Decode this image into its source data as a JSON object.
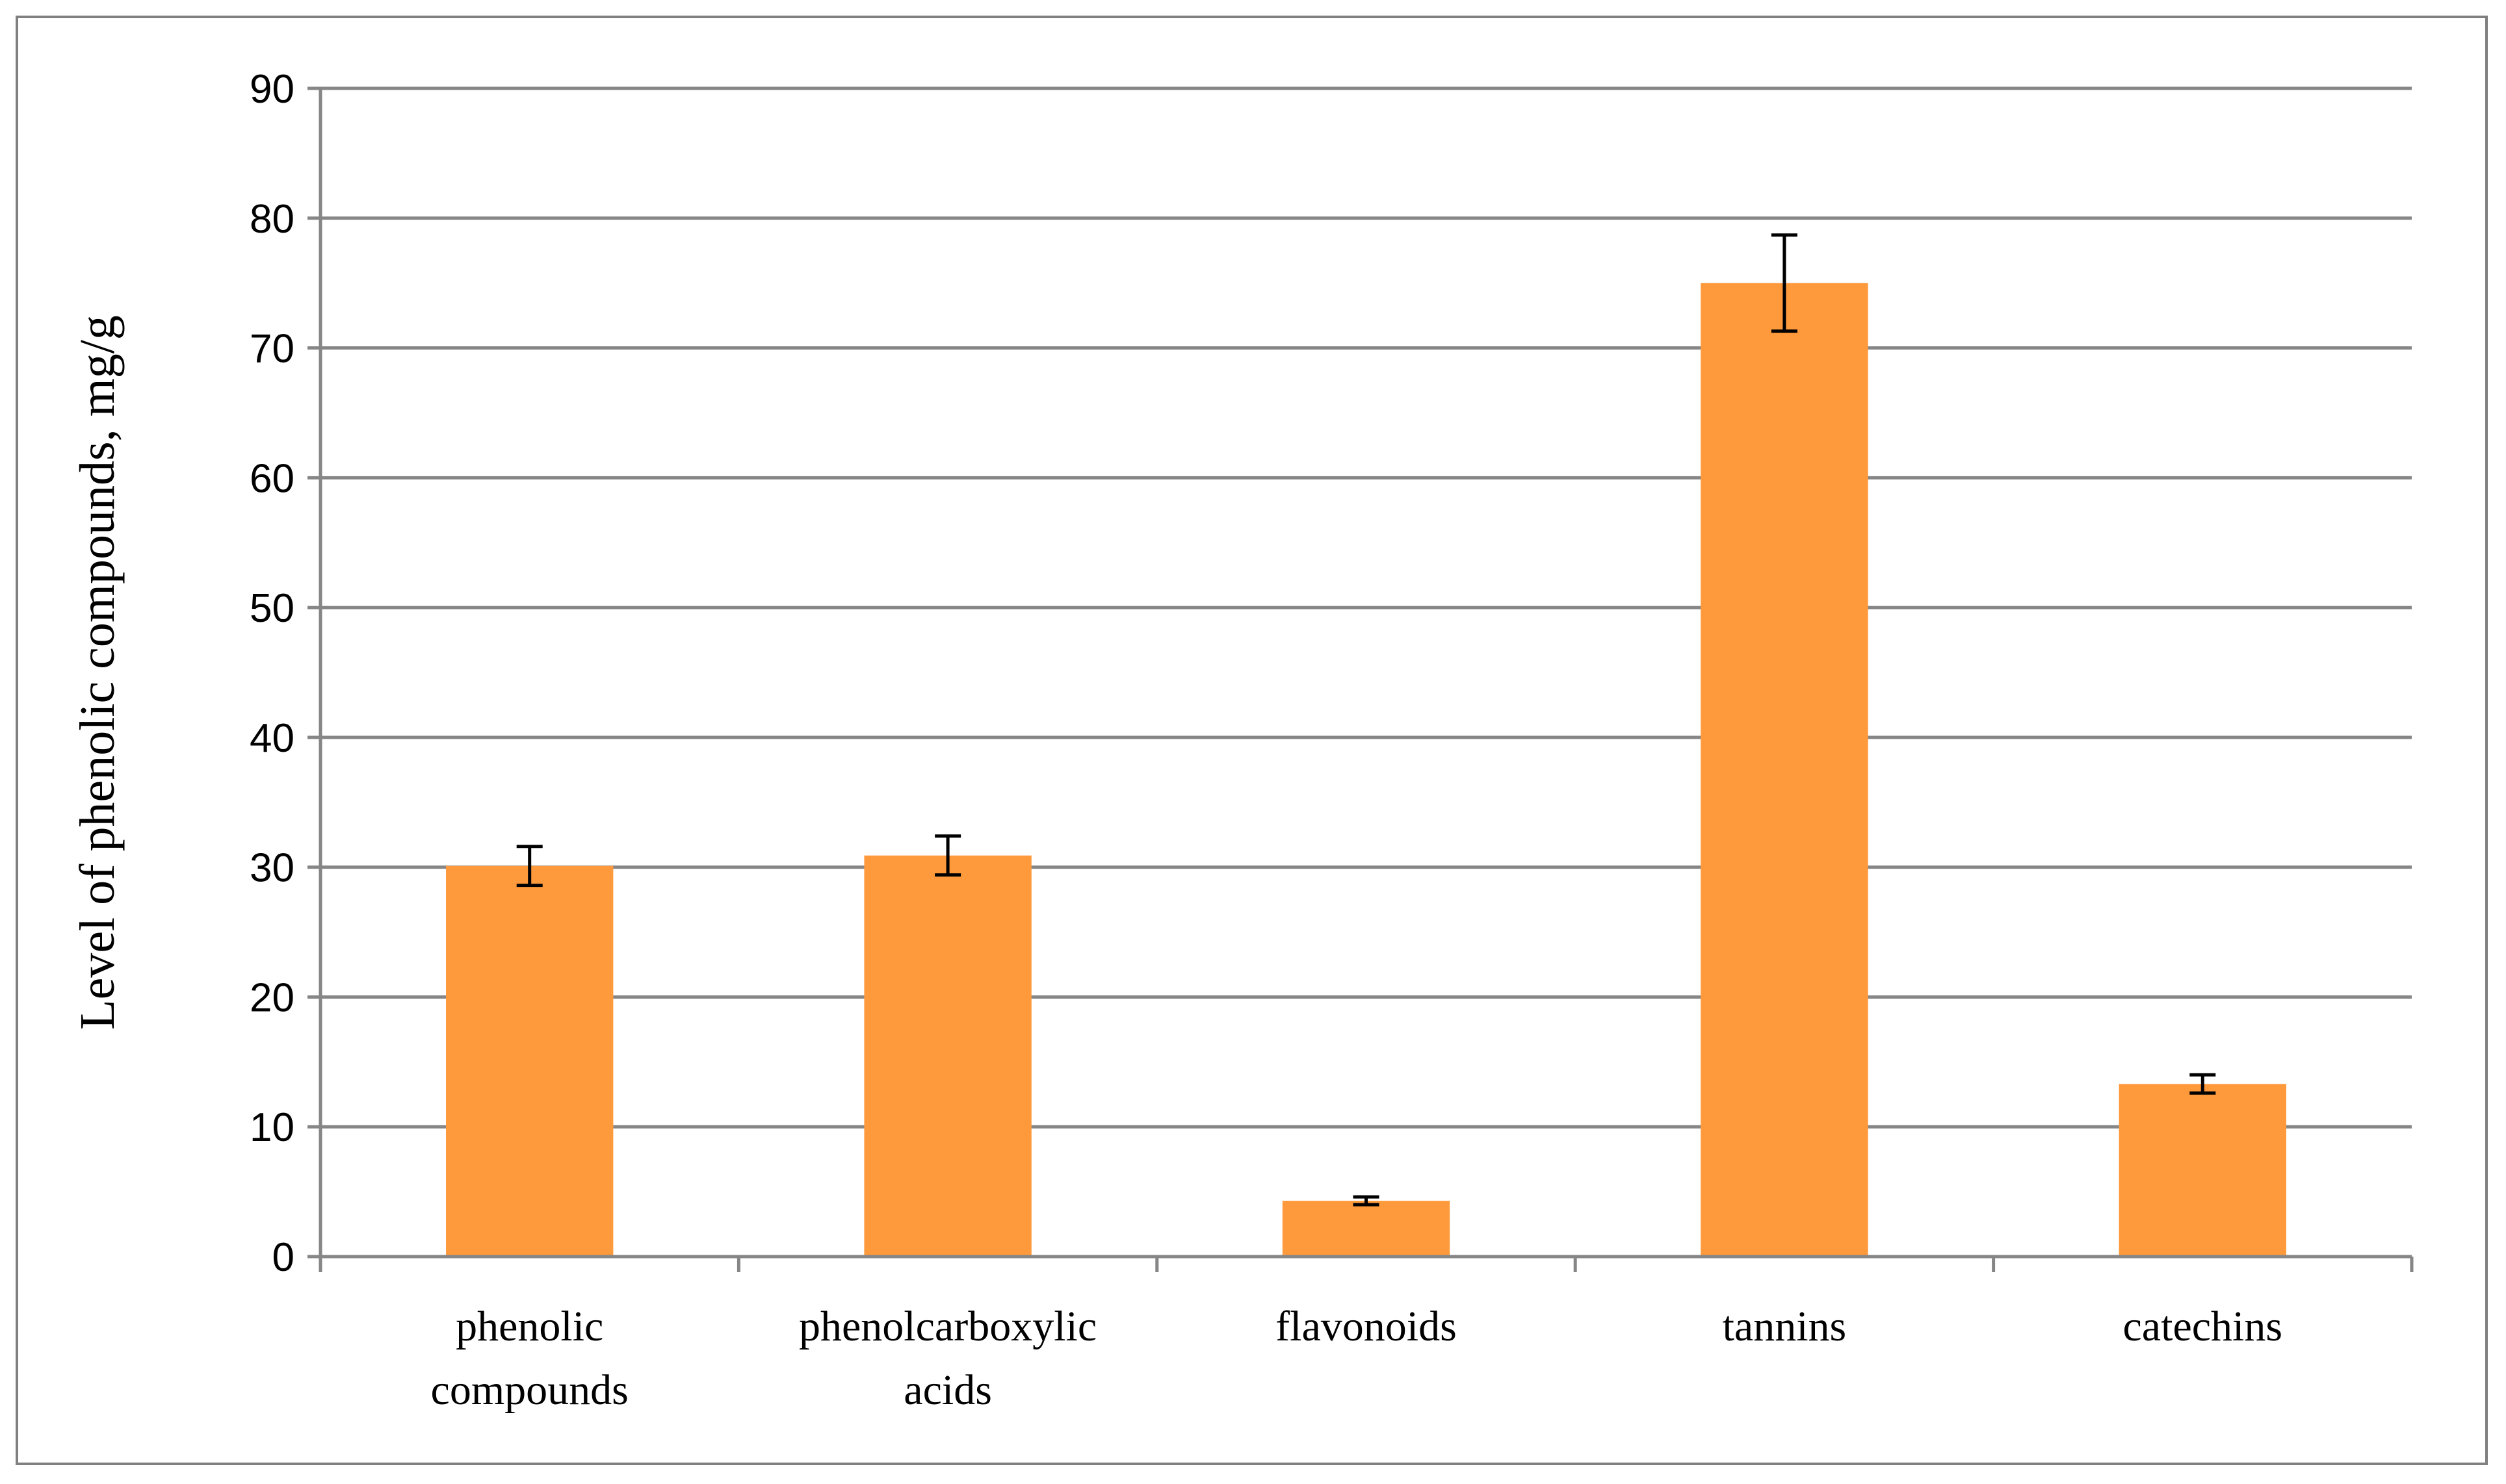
{
  "chart_data": {
    "type": "bar",
    "title": "",
    "xlabel": "",
    "ylabel": "Level of phenolic compounds, mg/g",
    "ylim": [
      0,
      90
    ],
    "yticks": [
      0,
      10,
      20,
      30,
      40,
      50,
      60,
      70,
      80,
      90
    ],
    "ytick_labels": [
      "0",
      "10",
      "20",
      "30",
      "40",
      "50",
      "60",
      "70",
      "80",
      "90"
    ],
    "grid": true,
    "legend": "none",
    "categories": [
      [
        "phenolic",
        "compounds"
      ],
      [
        "phenolcarboxylic",
        "acids"
      ],
      [
        "flavonoids"
      ],
      [
        "tannins"
      ],
      [
        "catechins"
      ]
    ],
    "values": [
      30.1,
      30.9,
      4.3,
      75.0,
      13.3
    ],
    "error": [
      1.5,
      1.5,
      0.3,
      3.7,
      0.7
    ],
    "colors": {
      "bar": "#FF9A3C",
      "grid": "#868686",
      "axis": "#868686",
      "error_bar": "#000000"
    }
  }
}
